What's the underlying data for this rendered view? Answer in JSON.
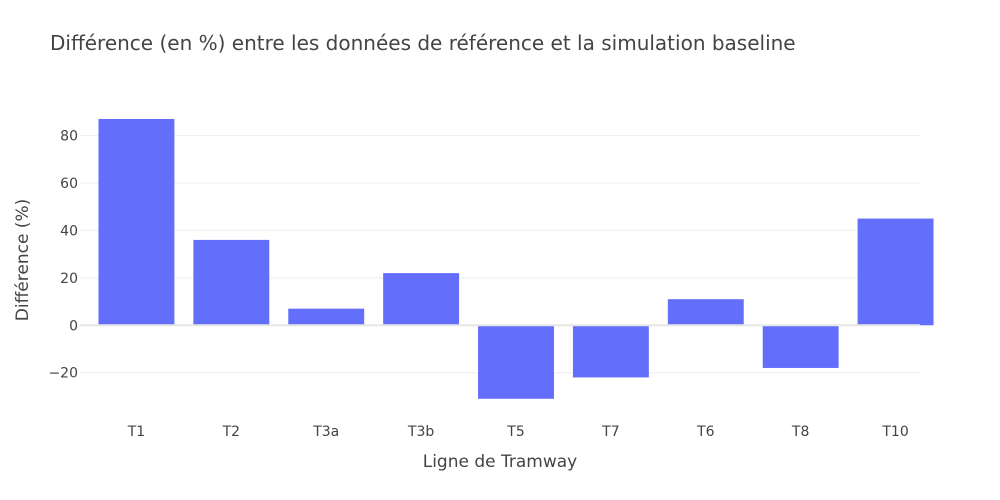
{
  "chart_data": {
    "type": "bar",
    "title": "Différence (en %) entre les données de référence et la simulation baseline",
    "xlabel": "Ligne de Tramway",
    "ylabel": "Différence (%)",
    "categories": [
      "T1",
      "T2",
      "T3a",
      "T3b",
      "T5",
      "T7",
      "T6",
      "T8",
      "T10"
    ],
    "values": [
      87,
      36,
      7,
      22,
      -31,
      -22,
      11,
      -18,
      45
    ],
    "ylim": [
      -37,
      95
    ],
    "yticks": [
      -20,
      0,
      20,
      40,
      60,
      80
    ],
    "ytick_labels": [
      "−20",
      "0",
      "20",
      "40",
      "60",
      "80"
    ],
    "bar_color": "#636efa",
    "grid": true
  }
}
